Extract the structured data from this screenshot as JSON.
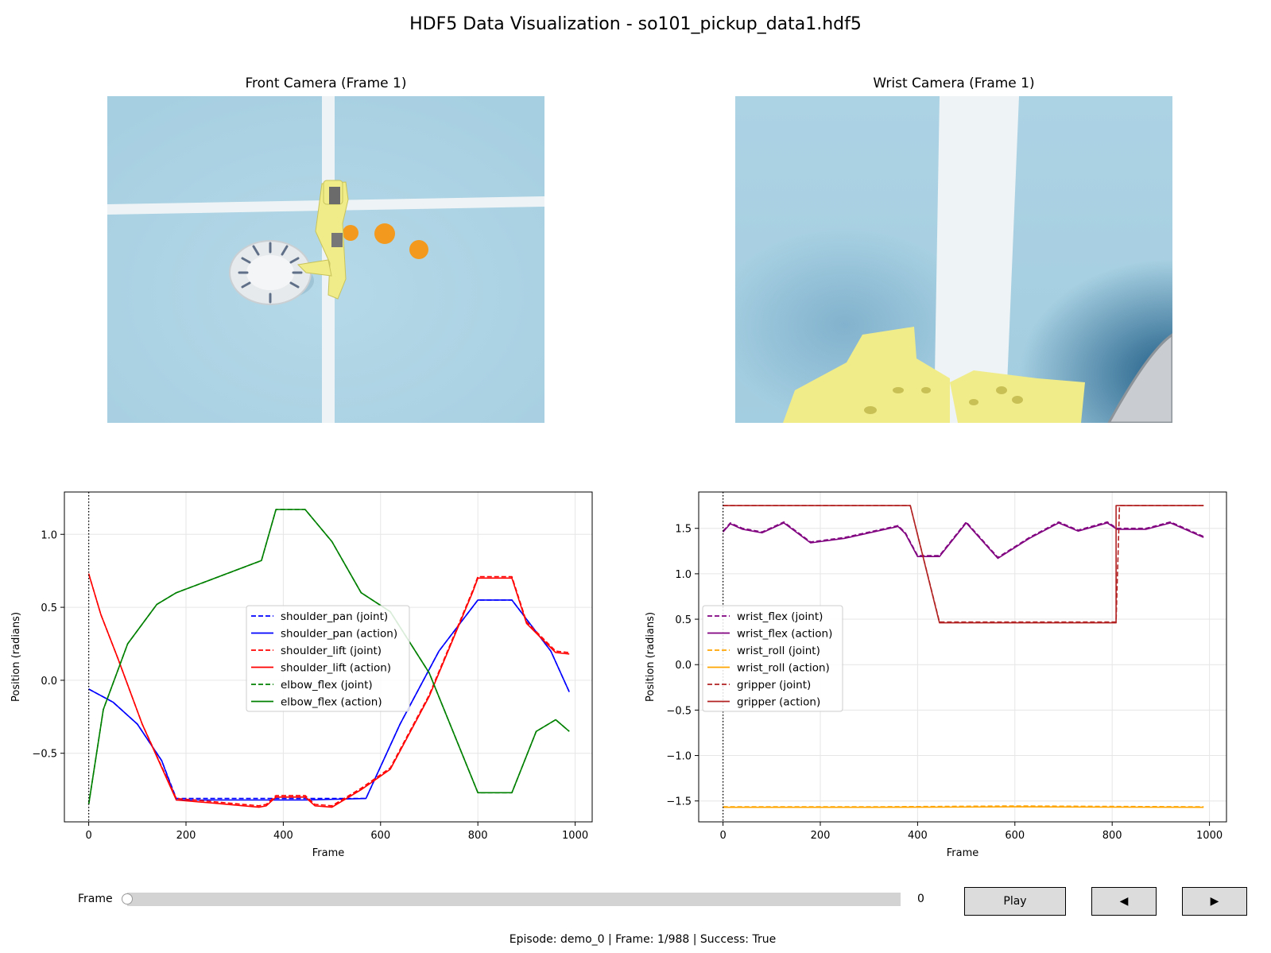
{
  "window": {
    "title": "HDF5 Data Visualization - so101_pickup_data1.hdf5"
  },
  "cameras": [
    {
      "title": "Front Camera (Frame 1)"
    },
    {
      "title": "Wrist Camera (Frame 1)"
    }
  ],
  "chart_data": [
    {
      "type": "line",
      "xlabel": "Frame",
      "ylabel": "Position (radians)",
      "xlim": [
        -50,
        1035
      ],
      "ylim": [
        -0.97,
        1.29
      ],
      "xticks": [
        0,
        200,
        400,
        600,
        800,
        1000
      ],
      "yticks": [
        -0.5,
        0.0,
        0.5,
        1.0
      ],
      "ytick_labels": [
        "−0.5",
        "0.0",
        "0.5",
        "1.0"
      ],
      "grid": true,
      "legend": "center",
      "current_frame": 0,
      "series": [
        {
          "name": "shoulder_pan (joint)",
          "color": "#0000ff",
          "dash": true,
          "x": [
            0,
            50,
            100,
            150,
            180,
            250,
            350,
            450,
            570,
            640,
            720,
            800,
            870,
            950,
            988
          ],
          "y": [
            -0.06,
            -0.15,
            -0.3,
            -0.55,
            -0.81,
            -0.81,
            -0.81,
            -0.81,
            -0.81,
            -0.3,
            0.2,
            0.55,
            0.55,
            0.2,
            -0.08
          ]
        },
        {
          "name": "shoulder_pan (action)",
          "color": "#0000ff",
          "dash": false,
          "x": [
            0,
            50,
            100,
            150,
            180,
            250,
            350,
            450,
            570,
            640,
            720,
            800,
            870,
            950,
            988
          ],
          "y": [
            -0.06,
            -0.15,
            -0.3,
            -0.55,
            -0.82,
            -0.82,
            -0.82,
            -0.82,
            -0.81,
            -0.3,
            0.2,
            0.55,
            0.55,
            0.2,
            -0.08
          ]
        },
        {
          "name": "shoulder_lift (joint)",
          "color": "#ff0000",
          "dash": true,
          "x": [
            0,
            25,
            60,
            110,
            180,
            250,
            350,
            365,
            385,
            445,
            465,
            500,
            560,
            620,
            700,
            790,
            800,
            870,
            900,
            960,
            988
          ],
          "y": [
            0.73,
            0.45,
            0.15,
            -0.3,
            -0.81,
            -0.83,
            -0.86,
            -0.85,
            -0.79,
            -0.79,
            -0.85,
            -0.86,
            -0.74,
            -0.6,
            -0.1,
            0.62,
            0.71,
            0.71,
            0.4,
            0.2,
            0.19
          ]
        },
        {
          "name": "shoulder_lift (action)",
          "color": "#ff0000",
          "dash": false,
          "x": [
            0,
            25,
            60,
            110,
            180,
            250,
            350,
            365,
            385,
            445,
            465,
            500,
            560,
            620,
            700,
            790,
            800,
            870,
            900,
            960,
            988
          ],
          "y": [
            0.73,
            0.45,
            0.15,
            -0.3,
            -0.82,
            -0.84,
            -0.87,
            -0.86,
            -0.8,
            -0.8,
            -0.86,
            -0.87,
            -0.75,
            -0.61,
            -0.11,
            0.61,
            0.7,
            0.7,
            0.39,
            0.19,
            0.18
          ]
        },
        {
          "name": "elbow_flex (joint)",
          "color": "#008000",
          "dash": true,
          "x": [
            0,
            30,
            80,
            140,
            180,
            260,
            355,
            385,
            445,
            500,
            560,
            620,
            700,
            800,
            870,
            920,
            960,
            988
          ],
          "y": [
            -0.85,
            -0.2,
            0.25,
            0.52,
            0.6,
            0.7,
            0.82,
            1.17,
            1.17,
            0.95,
            0.6,
            0.47,
            0.05,
            -0.77,
            -0.77,
            -0.35,
            -0.27,
            -0.35
          ]
        },
        {
          "name": "elbow_flex (action)",
          "color": "#008000",
          "dash": false,
          "x": [
            0,
            30,
            80,
            140,
            180,
            260,
            355,
            385,
            445,
            500,
            560,
            620,
            700,
            800,
            870,
            920,
            960,
            988
          ],
          "y": [
            -0.85,
            -0.2,
            0.25,
            0.52,
            0.6,
            0.7,
            0.82,
            1.17,
            1.17,
            0.95,
            0.6,
            0.47,
            0.05,
            -0.77,
            -0.77,
            -0.35,
            -0.27,
            -0.35
          ]
        }
      ]
    },
    {
      "type": "line",
      "xlabel": "Frame",
      "ylabel": "Position (radians)",
      "xlim": [
        -50,
        1035
      ],
      "ylim": [
        -1.73,
        1.9
      ],
      "xticks": [
        0,
        200,
        400,
        600,
        800,
        1000
      ],
      "yticks": [
        -1.5,
        -1.0,
        -0.5,
        0.0,
        0.5,
        1.0,
        1.5
      ],
      "ytick_labels": [
        "−1.5",
        "−1.0",
        "−0.5",
        "0.0",
        "0.5",
        "1.0",
        "1.5"
      ],
      "grid": true,
      "legend": "center-left",
      "current_frame": 0,
      "series": [
        {
          "name": "wrist_flex (joint)",
          "color": "#800080",
          "dash": true,
          "x": [
            0,
            15,
            40,
            80,
            125,
            180,
            250,
            360,
            375,
            400,
            445,
            500,
            565,
            630,
            690,
            730,
            790,
            810,
            870,
            920,
            988
          ],
          "y": [
            1.47,
            1.56,
            1.5,
            1.46,
            1.57,
            1.35,
            1.4,
            1.53,
            1.45,
            1.2,
            1.2,
            1.57,
            1.18,
            1.4,
            1.57,
            1.48,
            1.57,
            1.5,
            1.5,
            1.57,
            1.41
          ]
        },
        {
          "name": "wrist_flex (action)",
          "color": "#800080",
          "dash": false,
          "x": [
            0,
            15,
            40,
            80,
            125,
            180,
            250,
            360,
            375,
            400,
            445,
            500,
            565,
            630,
            690,
            730,
            790,
            810,
            870,
            920,
            988
          ],
          "y": [
            1.46,
            1.55,
            1.49,
            1.45,
            1.56,
            1.34,
            1.39,
            1.52,
            1.44,
            1.19,
            1.19,
            1.56,
            1.17,
            1.39,
            1.56,
            1.47,
            1.56,
            1.49,
            1.49,
            1.56,
            1.4
          ]
        },
        {
          "name": "wrist_roll (joint)",
          "color": "#ffa500",
          "dash": true,
          "x": [
            0,
            300,
            450,
            600,
            800,
            988
          ],
          "y": [
            -1.565,
            -1.565,
            -1.56,
            -1.555,
            -1.56,
            -1.565
          ]
        },
        {
          "name": "wrist_roll (action)",
          "color": "#ffa500",
          "dash": false,
          "x": [
            0,
            300,
            450,
            600,
            800,
            988
          ],
          "y": [
            -1.57,
            -1.57,
            -1.568,
            -1.565,
            -1.568,
            -1.57
          ]
        },
        {
          "name": "gripper (joint)",
          "color": "#b22222",
          "dash": true,
          "x": [
            0,
            385,
            445,
            808,
            815,
            988
          ],
          "y": [
            1.75,
            1.75,
            0.47,
            0.47,
            1.75,
            1.75
          ]
        },
        {
          "name": "gripper (action)",
          "color": "#b22222",
          "dash": false,
          "x": [
            0,
            385,
            445,
            808,
            808,
            988
          ],
          "y": [
            1.75,
            1.75,
            0.46,
            0.46,
            1.75,
            1.75
          ]
        }
      ]
    }
  ],
  "controls": {
    "slider_label": "Frame",
    "slider_value": "0",
    "slider_fraction": 0.0,
    "play_label": "Play",
    "prev_label": "◀",
    "next_label": "▶"
  },
  "status": "Episode: demo_0 | Frame: 1/988 | Success: True",
  "colors": {
    "floor": "#a8d1e2",
    "robot": "#f0ec8a",
    "orange": "#f39a1e"
  }
}
